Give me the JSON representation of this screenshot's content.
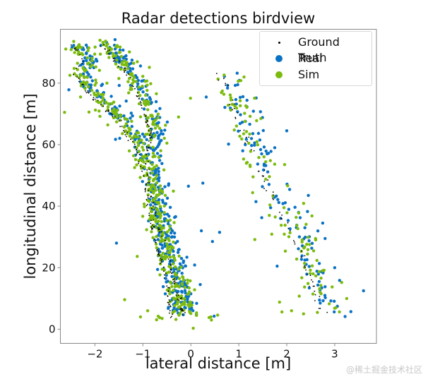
{
  "figure": {
    "watermark": "@稀土掘金技术社区"
  },
  "chart_data": {
    "type": "scatter",
    "title": "Radar detections birdview",
    "xlabel": "lateral distance [m]",
    "ylabel": "longitudinal distance [m]",
    "xlim": [
      -2.72,
      3.87
    ],
    "ylim": [
      -4.6,
      97.5
    ],
    "xticks": [
      -2,
      -1,
      0,
      1,
      2,
      3
    ],
    "xtick_labels": [
      "−2",
      "−1",
      "0",
      "1",
      "2",
      "3"
    ],
    "yticks": [
      0,
      20,
      40,
      60,
      80
    ],
    "ytick_labels": [
      "0",
      "20",
      "40",
      "60",
      "80"
    ],
    "grid": false,
    "legend_position": "upper right",
    "legend": [
      {
        "label": "Ground Truth",
        "color": "#000000",
        "marker": "small-dot"
      },
      {
        "label": "Real",
        "color": "#0a72c4",
        "marker": "circle"
      },
      {
        "label": "Sim",
        "color": "#7cbb0e",
        "marker": "circle"
      }
    ],
    "tracks": [
      {
        "name": "left-outer",
        "path": [
          [
            -2.38,
            92.9
          ],
          [
            -2.13,
            87.6
          ],
          [
            -2.31,
            83.0
          ],
          [
            -1.91,
            75.0
          ],
          [
            -1.4,
            68.0
          ],
          [
            -1.03,
            58.9
          ],
          [
            -0.85,
            47.4
          ],
          [
            -0.66,
            31.3
          ],
          [
            -0.37,
            15.2
          ],
          [
            -0.29,
            3.7
          ]
        ],
        "density": 220,
        "spread": 0.09
      },
      {
        "name": "left-inner",
        "path": [
          [
            -1.76,
            92.9
          ],
          [
            -1.25,
            84.0
          ],
          [
            -0.96,
            75.0
          ],
          [
            -0.71,
            63.4
          ],
          [
            -0.81,
            55.4
          ],
          [
            -0.71,
            42.8
          ],
          [
            -0.47,
            29.0
          ],
          [
            -0.22,
            15.2
          ],
          [
            -0.03,
            4.1
          ]
        ],
        "density": 220,
        "spread": 0.09
      },
      {
        "name": "right",
        "path": [
          [
            0.74,
            83.0
          ],
          [
            1.18,
            65.7
          ],
          [
            1.76,
            45.0
          ],
          [
            2.35,
            26.7
          ],
          [
            2.76,
            10.6
          ],
          [
            2.9,
            4.8
          ]
        ],
        "density": 110,
        "spread": 0.17
      }
    ],
    "series": [
      {
        "name": "Ground Truth",
        "color": "#000000",
        "size": 0.9,
        "offset": -0.12,
        "scatter_factor": 0.25,
        "count_factor": 0.6
      },
      {
        "name": "Real",
        "color": "#0a72c4",
        "size": 2.2,
        "offset": 0.04,
        "scatter_factor": 1.0,
        "count_factor": 1.0
      },
      {
        "name": "Sim",
        "color": "#7cbb0e",
        "size": 2.2,
        "offset": -0.02,
        "scatter_factor": 1.1,
        "count_factor": 1.0
      }
    ],
    "outliers": {
      "Real": [
        [
          -1.55,
          28.0
        ],
        [
          -0.05,
          46.5
        ],
        [
          0.45,
          28.5
        ],
        [
          0.6,
          31.5
        ],
        [
          0.95,
          73.2
        ],
        [
          2.0,
          64.5
        ],
        [
          1.75,
          59.0
        ],
        [
          2.45,
          43.5
        ],
        [
          3.6,
          12.5
        ],
        [
          0.25,
          47.5
        ],
        [
          0.22,
          32.0
        ],
        [
          -0.5,
          23.5
        ],
        [
          2.75,
          34.5
        ],
        [
          3.0,
          20.0
        ],
        [
          1.8,
          20.5
        ],
        [
          2.8,
          29.5
        ]
      ],
      "Sim": [
        [
          -1.38,
          9.6
        ],
        [
          -0.9,
          6.0
        ],
        [
          -1.05,
          4.0
        ],
        [
          -0.68,
          4.2
        ],
        [
          -0.6,
          3.5
        ],
        [
          0.0,
          5.1
        ],
        [
          0.42,
          4.0
        ],
        [
          0.43,
          3.0
        ],
        [
          0.38,
          3.8
        ],
        [
          0.56,
          4.6
        ],
        [
          0.05,
          0.3
        ],
        [
          1.85,
          8.8
        ],
        [
          2.1,
          6.0
        ],
        [
          2.35,
          5.0
        ],
        [
          1.9,
          5.6
        ],
        [
          -2.3,
          75.5
        ],
        [
          -1.75,
          80.0
        ],
        [
          -1.5,
          81.5
        ],
        [
          -1.6,
          71.5
        ],
        [
          -1.25,
          78.5
        ],
        [
          -0.9,
          66.0
        ],
        [
          -0.5,
          60.5
        ],
        [
          2.55,
          18.0
        ]
      ]
    },
    "sample_points": {
      "Real": [
        [
          -2.38,
          92.5
        ],
        [
          -2.15,
          86.0
        ],
        [
          -1.9,
          75.0
        ],
        [
          -1.03,
          59.0
        ],
        [
          -0.85,
          47.0
        ],
        [
          -0.65,
          31.0
        ],
        [
          -0.37,
          15.0
        ],
        [
          -0.05,
          4.0
        ],
        [
          1.2,
          65.5
        ],
        [
          1.75,
          45.0
        ],
        [
          2.35,
          27.0
        ],
        [
          2.9,
          5.0
        ]
      ],
      "Sim": [
        [
          -2.3,
          91.0
        ],
        [
          -2.3,
          83.0
        ],
        [
          -1.45,
          69.0
        ],
        [
          -0.8,
          55.0
        ],
        [
          -0.72,
          43.0
        ],
        [
          -0.48,
          29.0
        ],
        [
          -0.25,
          15.0
        ],
        [
          -0.3,
          4.0
        ],
        [
          0.8,
          82.0
        ],
        [
          1.7,
          46.0
        ],
        [
          2.3,
          27.0
        ],
        [
          2.85,
          5.5
        ]
      ],
      "Ground Truth": [
        [
          -2.45,
          92.0
        ],
        [
          -1.5,
          70.0
        ],
        [
          -1.0,
          58.0
        ],
        [
          -0.95,
          45.0
        ],
        [
          -0.45,
          15.0
        ],
        [
          -0.45,
          3.5
        ],
        [
          0.65,
          82.0
        ],
        [
          1.6,
          46.0
        ],
        [
          2.7,
          10.0
        ]
      ]
    }
  }
}
